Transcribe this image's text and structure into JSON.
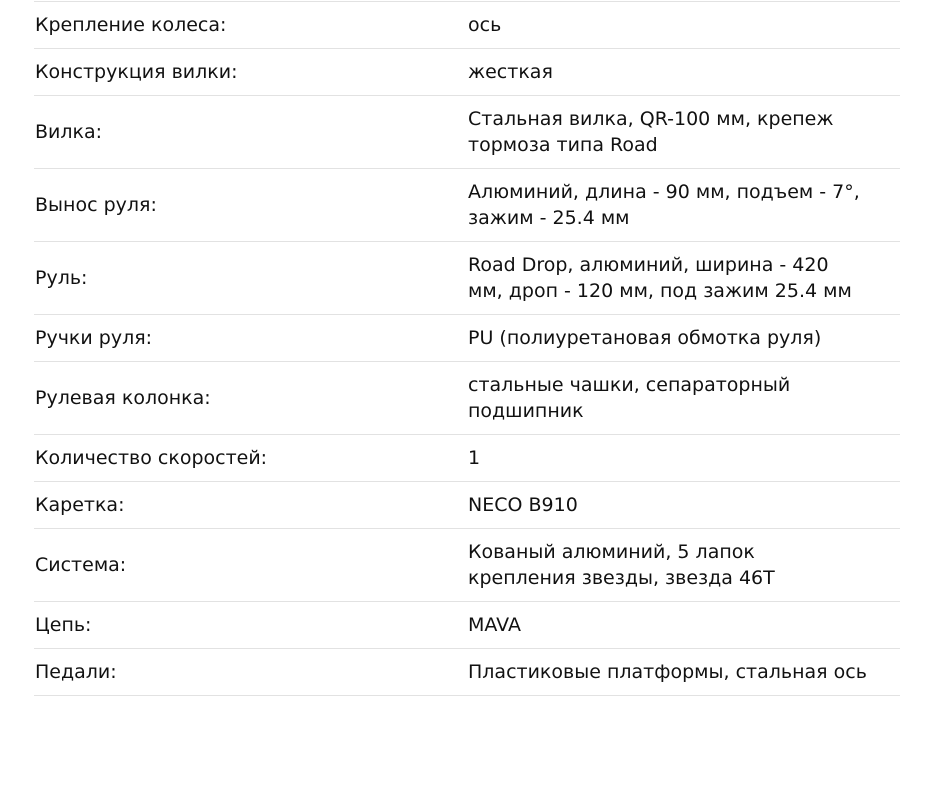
{
  "specs": [
    {
      "label": "Крепление колеса:",
      "value": "ось"
    },
    {
      "label": "Конструкция вилки:",
      "value": "жесткая"
    },
    {
      "label": "Вилка:",
      "value": "Стальная вилка, QR-100 мм, крепеж тормоза типа Road"
    },
    {
      "label": "Вынос руля:",
      "value": "Алюминий, длина - 90 мм, подъем - 7°, зажим - 25.4 мм"
    },
    {
      "label": "Руль:",
      "value": "Road Drop, алюминий, ширина - 420 мм, дроп - 120 мм, под зажим 25.4 мм"
    },
    {
      "label": "Ручки руля:",
      "value": "PU (полиуретановая обмотка руля)"
    },
    {
      "label": "Рулевая колонка:",
      "value": "стальные чашки, сепараторный подшипник"
    },
    {
      "label": "Количество скоростей:",
      "value": "1"
    },
    {
      "label": "Каретка:",
      "value": "NECO B910"
    },
    {
      "label": "Система:",
      "value": "Кованый алюминий, 5 лапок крепления звезды, звезда 46T"
    },
    {
      "label": "Цепь:",
      "value": "MAVA"
    },
    {
      "label": "Педали:",
      "value": "Пластиковые платформы, стальная ось"
    }
  ]
}
